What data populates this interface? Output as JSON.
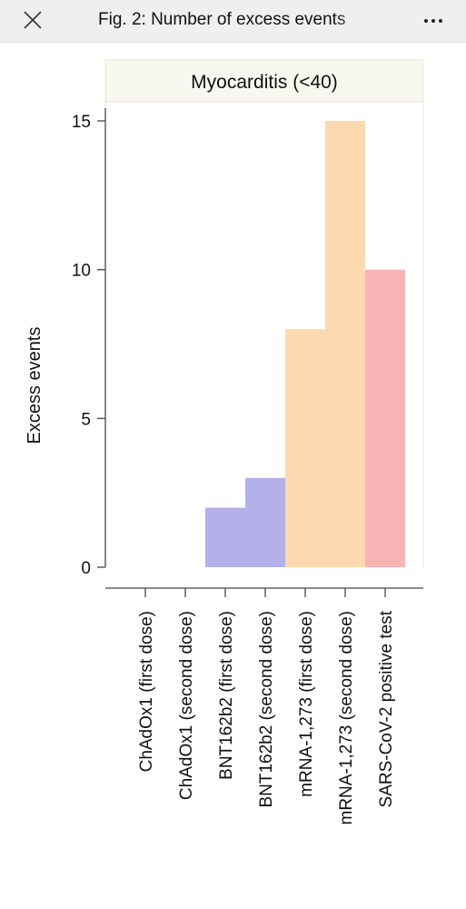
{
  "header": {
    "title": "Fig. 2: Number of excess events",
    "close_icon": "close-icon",
    "more_icon": "more-horizontal-icon"
  },
  "chart_data": {
    "type": "bar",
    "title": "Myocarditis (<40)",
    "xlabel": "",
    "ylabel": "Excess events",
    "ylim": [
      0,
      15
    ],
    "yticks": [
      0,
      5,
      10,
      15
    ],
    "grid": false,
    "categories": [
      "ChAdOx1 (first dose)",
      "ChAdOx1 (second dose)",
      "BNT162b2 (first dose)",
      "BNT162b2 (second dose)",
      "mRNA-1,273 (first dose)",
      "mRNA-1,273 (second dose)",
      "SARS-CoV-2 positive test"
    ],
    "values": [
      0,
      0,
      2,
      3,
      8,
      15,
      10
    ],
    "colors": [
      "#b3b0ea",
      "#b3b0ea",
      "#b3b0ea",
      "#b3b0ea",
      "#fcd9b1",
      "#fcd9b1",
      "#f8b3b5"
    ],
    "panel_strip_color": "#f8f7ef"
  }
}
